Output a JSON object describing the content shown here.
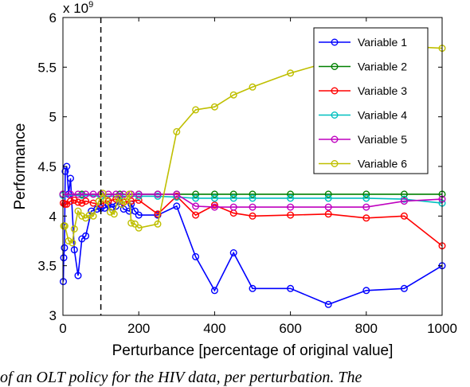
{
  "chart_data": {
    "type": "line",
    "xlabel": "Perturbance [percentage of original value]",
    "ylabel": "Performance",
    "y_multiplier_label": "x 10",
    "y_multiplier_exponent": "9",
    "xlim": [
      0,
      1000
    ],
    "ylim": [
      3,
      6
    ],
    "xticks": [
      "0",
      "200",
      "400",
      "600",
      "800",
      "1000"
    ],
    "yticks": [
      "3",
      "3.5",
      "4",
      "4.5",
      "5",
      "5.5",
      "6"
    ],
    "reference_line_x": 100,
    "grid": false,
    "legend_position": "top-right",
    "series": [
      {
        "name": "Variable 1",
        "color": "#0000ff",
        "points": [
          [
            1,
            3.34
          ],
          [
            2,
            3.58
          ],
          [
            4,
            3.68
          ],
          [
            6,
            4.45
          ],
          [
            10,
            4.5
          ],
          [
            15,
            4.22
          ],
          [
            20,
            4.38
          ],
          [
            30,
            3.66
          ],
          [
            40,
            3.4
          ],
          [
            50,
            3.77
          ],
          [
            60,
            3.8
          ],
          [
            75,
            4.05
          ],
          [
            90,
            4.07
          ],
          [
            100,
            4.08
          ],
          [
            110,
            4.08
          ],
          [
            120,
            4.11
          ],
          [
            130,
            4.09
          ],
          [
            140,
            4.1
          ],
          [
            150,
            4.15
          ],
          [
            160,
            4.07
          ],
          [
            175,
            4.05
          ],
          [
            180,
            4.12
          ],
          [
            190,
            4.05
          ],
          [
            200,
            4.01
          ],
          [
            250,
            4.01
          ],
          [
            300,
            4.1
          ],
          [
            350,
            3.59
          ],
          [
            400,
            3.25
          ],
          [
            450,
            3.63
          ],
          [
            500,
            3.27
          ],
          [
            600,
            3.27
          ],
          [
            700,
            3.11
          ],
          [
            800,
            3.25
          ],
          [
            900,
            3.27
          ],
          [
            1000,
            3.5
          ]
        ]
      },
      {
        "name": "Variable 2",
        "color": "#008000",
        "points": [
          [
            0,
            4.22
          ],
          [
            50,
            4.22
          ],
          [
            100,
            4.22
          ],
          [
            150,
            4.22
          ],
          [
            200,
            4.22
          ],
          [
            250,
            4.22
          ],
          [
            300,
            4.22
          ],
          [
            350,
            4.22
          ],
          [
            400,
            4.22
          ],
          [
            450,
            4.22
          ],
          [
            500,
            4.22
          ],
          [
            600,
            4.22
          ],
          [
            700,
            4.22
          ],
          [
            800,
            4.22
          ],
          [
            900,
            4.22
          ],
          [
            1000,
            4.22
          ]
        ]
      },
      {
        "name": "Variable 3",
        "color": "#ff0000",
        "points": [
          [
            1,
            4.13
          ],
          [
            5,
            4.12
          ],
          [
            10,
            4.12
          ],
          [
            20,
            4.15
          ],
          [
            30,
            4.16
          ],
          [
            40,
            4.14
          ],
          [
            50,
            4.13
          ],
          [
            60,
            4.15
          ],
          [
            80,
            4.13
          ],
          [
            100,
            4.12
          ],
          [
            120,
            4.15
          ],
          [
            140,
            4.17
          ],
          [
            160,
            4.14
          ],
          [
            180,
            4.15
          ],
          [
            200,
            4.16
          ],
          [
            250,
            4.02
          ],
          [
            300,
            4.2
          ],
          [
            350,
            4.01
          ],
          [
            400,
            4.11
          ],
          [
            450,
            4.03
          ],
          [
            500,
            4.0
          ],
          [
            600,
            4.01
          ],
          [
            700,
            4.02
          ],
          [
            800,
            3.98
          ],
          [
            900,
            4.0
          ],
          [
            1000,
            3.7
          ]
        ]
      },
      {
        "name": "Variable 4",
        "color": "#00bfbf",
        "points": [
          [
            0,
            4.21
          ],
          [
            50,
            4.21
          ],
          [
            100,
            4.2
          ],
          [
            150,
            4.2
          ],
          [
            200,
            4.2
          ],
          [
            250,
            4.2
          ],
          [
            300,
            4.19
          ],
          [
            350,
            4.18
          ],
          [
            400,
            4.18
          ],
          [
            450,
            4.18
          ],
          [
            500,
            4.18
          ],
          [
            600,
            4.18
          ],
          [
            700,
            4.18
          ],
          [
            800,
            4.18
          ],
          [
            900,
            4.17
          ],
          [
            1000,
            4.13
          ]
        ]
      },
      {
        "name": "Variable 5",
        "color": "#bf00bf",
        "points": [
          [
            0,
            4.22
          ],
          [
            20,
            4.22
          ],
          [
            40,
            4.22
          ],
          [
            60,
            4.22
          ],
          [
            80,
            4.22
          ],
          [
            100,
            4.22
          ],
          [
            120,
            4.22
          ],
          [
            140,
            4.22
          ],
          [
            160,
            4.22
          ],
          [
            180,
            4.22
          ],
          [
            200,
            4.22
          ],
          [
            250,
            4.22
          ],
          [
            300,
            4.22
          ],
          [
            350,
            4.1
          ],
          [
            400,
            4.09
          ],
          [
            450,
            4.09
          ],
          [
            500,
            4.09
          ],
          [
            600,
            4.09
          ],
          [
            700,
            4.09
          ],
          [
            800,
            4.09
          ],
          [
            900,
            4.15
          ],
          [
            1000,
            4.17
          ]
        ]
      },
      {
        "name": "Variable 6",
        "color": "#bfbf00",
        "points": [
          [
            2,
            3.9
          ],
          [
            5,
            3.9
          ],
          [
            15,
            3.75
          ],
          [
            25,
            3.73
          ],
          [
            30,
            3.87
          ],
          [
            40,
            4.05
          ],
          [
            50,
            4.0
          ],
          [
            60,
            3.98
          ],
          [
            70,
            4.01
          ],
          [
            80,
            4.0
          ],
          [
            95,
            4.15
          ],
          [
            105,
            4.23
          ],
          [
            115,
            4.16
          ],
          [
            125,
            4.04
          ],
          [
            135,
            4.02
          ],
          [
            145,
            4.18
          ],
          [
            155,
            4.12
          ],
          [
            165,
            4.15
          ],
          [
            175,
            4.22
          ],
          [
            180,
            3.93
          ],
          [
            190,
            3.92
          ],
          [
            200,
            3.88
          ],
          [
            250,
            3.92
          ],
          [
            300,
            4.85
          ],
          [
            350,
            5.07
          ],
          [
            400,
            5.1
          ],
          [
            450,
            5.22
          ],
          [
            500,
            5.3
          ],
          [
            600,
            5.44
          ],
          [
            700,
            5.55
          ],
          [
            800,
            5.6
          ],
          [
            900,
            5.71
          ],
          [
            1000,
            5.69
          ]
        ]
      }
    ]
  },
  "caption_text": "of an OLT policy for the HIV data, per perturbation. The"
}
